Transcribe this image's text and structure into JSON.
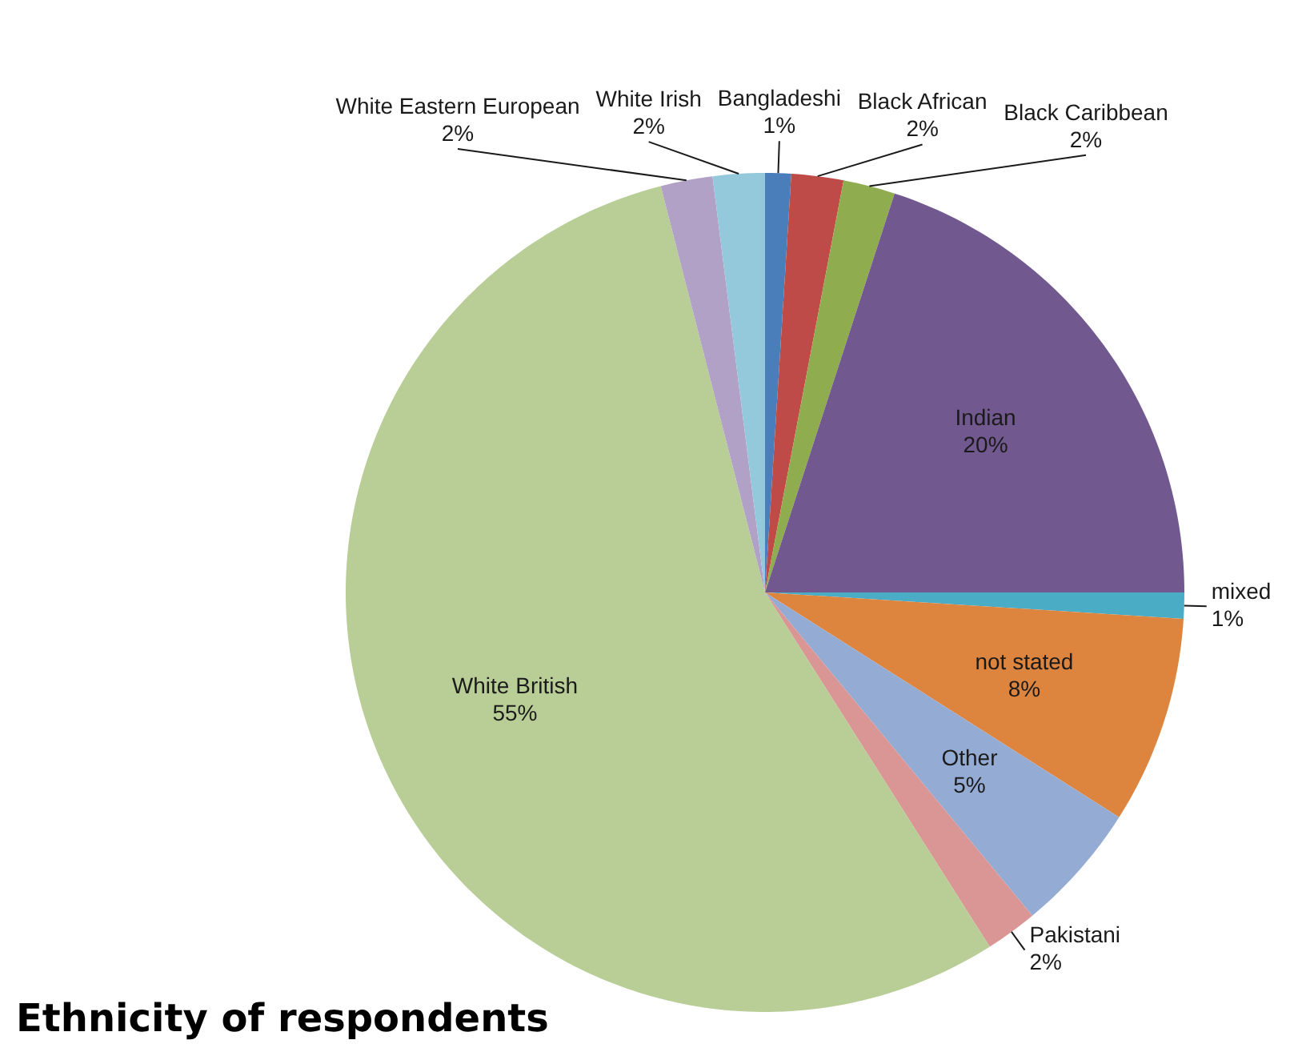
{
  "chart_data": {
    "type": "pie",
    "title": "Ethnicity of respondents",
    "categories": [
      "Bangladeshi",
      "Black African",
      "Black Caribbean",
      "Indian",
      "mixed",
      "not stated",
      "Other",
      "Pakistani",
      "White British",
      "White Eastern European",
      "White Irish"
    ],
    "values": [
      1,
      2,
      2,
      20,
      1,
      8,
      5,
      2,
      55,
      2,
      2
    ],
    "colors": [
      "#4a7ebb",
      "#be4b48",
      "#8fad4e",
      "#71588f",
      "#4bacc6",
      "#dd853e",
      "#94abd4",
      "#d99694",
      "#b9cd96",
      "#b2a1c7",
      "#93c9da"
    ],
    "value_labels": [
      "1%",
      "2%",
      "2%",
      "20%",
      "1%",
      "8%",
      "5%",
      "2%",
      "55%",
      "2%",
      "2%"
    ]
  }
}
